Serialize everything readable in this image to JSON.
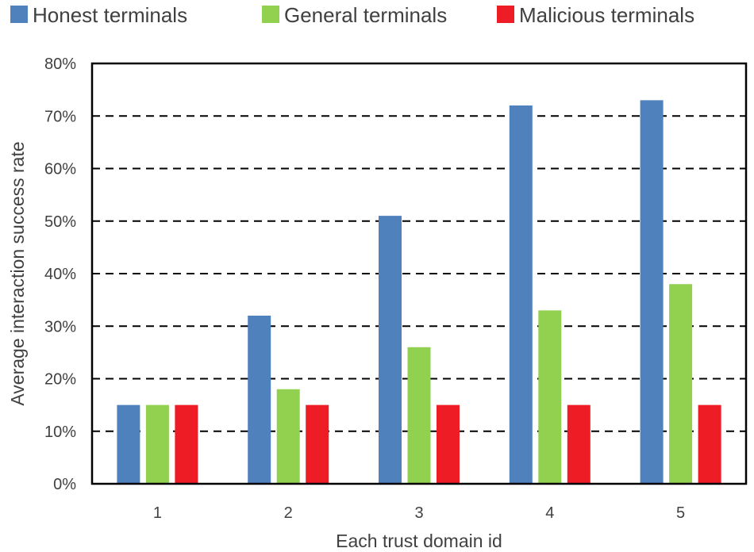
{
  "chart_data": {
    "type": "bar",
    "categories": [
      "1",
      "2",
      "3",
      "4",
      "5"
    ],
    "series": [
      {
        "name": "Honest terminals",
        "color": "#4F81BD",
        "values": [
          15,
          32,
          51,
          72,
          73
        ]
      },
      {
        "name": "General terminals",
        "color": "#92D050",
        "values": [
          15,
          18,
          26,
          33,
          38
        ]
      },
      {
        "name": "Malicious terminals",
        "color": "#EE1C25",
        "values": [
          15,
          15,
          15,
          15,
          15
        ]
      }
    ],
    "xlabel": "Each trust domain id",
    "ylabel": "Average interaction success rate",
    "ylim": [
      0,
      80
    ],
    "yticks": [
      "0%",
      "10%",
      "20%",
      "30%",
      "40%",
      "50%",
      "60%",
      "70%",
      "80%"
    ],
    "grid": "dashed horizontal",
    "legend_position": "top"
  }
}
